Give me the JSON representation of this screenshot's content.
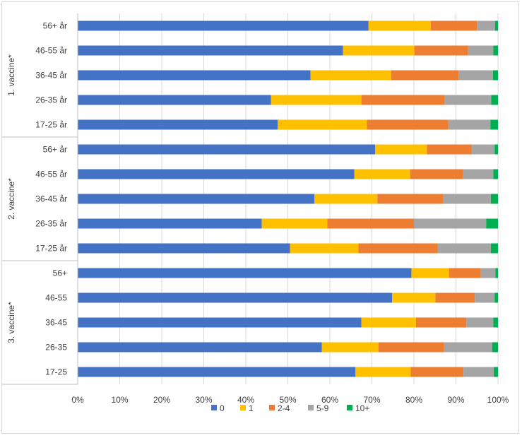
{
  "chart_data": {
    "type": "bar",
    "orientation": "horizontal",
    "stacked": "percent",
    "title": "",
    "xlabel": "",
    "ylabel": "",
    "xlim": [
      0,
      100
    ],
    "x_ticks": [
      "0%",
      "10%",
      "20%",
      "30%",
      "40%",
      "50%",
      "60%",
      "70%",
      "80%",
      "90%",
      "100%"
    ],
    "grid": true,
    "legend_position": "bottom",
    "groups": [
      {
        "name": "1. vaccine*",
        "categories": [
          "56+ år",
          "46-55 år",
          "36-45 år",
          "26-35 år",
          "17-25 år"
        ],
        "values": [
          [
            69.2,
            14.8,
            11.0,
            4.3,
            0.7
          ],
          [
            63.1,
            17.0,
            12.8,
            6.0,
            1.1
          ],
          [
            55.4,
            19.2,
            16.0,
            8.2,
            1.2
          ],
          [
            46.0,
            21.5,
            19.8,
            11.1,
            1.6
          ],
          [
            47.6,
            21.2,
            19.4,
            10.0,
            1.8
          ]
        ]
      },
      {
        "name": "2. vaccine*",
        "categories": [
          "56+ år",
          "46-55 år",
          "36-45 år",
          "26-35 år",
          "17-25 år"
        ],
        "values": [
          [
            70.8,
            12.3,
            10.6,
            5.5,
            0.8
          ],
          [
            65.8,
            13.3,
            12.5,
            7.3,
            1.1
          ],
          [
            56.3,
            15.0,
            15.7,
            11.3,
            1.7
          ],
          [
            43.8,
            15.6,
            20.6,
            17.2,
            2.8
          ],
          [
            50.5,
            16.3,
            18.9,
            12.6,
            1.7
          ]
        ]
      },
      {
        "name": "3. vaccine*",
        "categories": [
          "56+",
          "46-55",
          "36-45",
          "26-35",
          "17-25"
        ],
        "values": [
          [
            79.4,
            9.0,
            7.5,
            3.5,
            0.6
          ],
          [
            74.8,
            10.3,
            9.4,
            4.7,
            0.8
          ],
          [
            67.5,
            13.0,
            12.0,
            6.4,
            1.1
          ],
          [
            58.1,
            13.5,
            15.6,
            11.4,
            1.4
          ],
          [
            66.1,
            13.1,
            12.6,
            7.2,
            1.0
          ]
        ]
      }
    ],
    "series": [
      {
        "name": "0",
        "color": "#4472C4"
      },
      {
        "name": "1",
        "color": "#FFC000"
      },
      {
        "name": "2-4",
        "color": "#ED7D31"
      },
      {
        "name": "5-9",
        "color": "#A5A5A5"
      },
      {
        "name": "10+",
        "color": "#00B050"
      }
    ]
  }
}
